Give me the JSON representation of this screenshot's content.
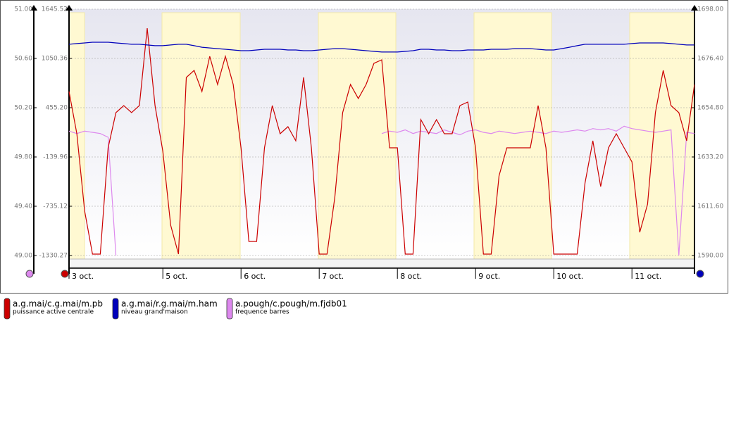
{
  "chart_data": {
    "type": "line",
    "xlim": [
      3.8,
      11.8
    ],
    "xticks": [
      {
        "value": 3.8,
        "label": "3 oct."
      },
      {
        "value": 5,
        "label": "5 oct."
      },
      {
        "value": 6,
        "label": "6 oct."
      },
      {
        "value": 7,
        "label": "7 oct."
      },
      {
        "value": 8,
        "label": "8 oct."
      },
      {
        "value": 9,
        "label": "9 oct."
      },
      {
        "value": 10,
        "label": "10 oct."
      },
      {
        "value": 11,
        "label": "11 oct."
      }
    ],
    "ylim": [
      -1330.27,
      1645.52
    ],
    "yticks": [
      -1330.27,
      -735.12,
      -139.96,
      {
        "value": 455.2,
        "label": "455.20"
      },
      1050.36,
      1645.52
    ],
    "y2lim": [
      1590,
      1698
    ],
    "y2ticks": [
      {
        "value": 1590,
        "label": "1590.00"
      },
      {
        "value": 1611.6,
        "label": "1611.60"
      },
      {
        "value": 1633.2,
        "label": "1633.20"
      },
      {
        "value": 1654.8,
        "label": "1654.80"
      },
      {
        "value": 1676.4,
        "label": "1676.40"
      },
      {
        "value": 1698,
        "label": "1698.00"
      }
    ],
    "y3lim": [
      49,
      51
    ],
    "y3ticks": [
      {
        "value": 49,
        "label": "49.00"
      },
      {
        "value": 49.4,
        "label": "49.40"
      },
      {
        "value": 49.8,
        "label": "49.80"
      },
      {
        "value": 50.2,
        "label": "50.20"
      },
      {
        "value": 50.6,
        "label": "50.60"
      },
      {
        "value": 51,
        "label": "51.00"
      }
    ],
    "grid": true,
    "x": [
      3.8,
      3.9,
      4.0,
      4.1,
      4.2,
      4.3,
      4.4,
      4.5,
      4.6,
      4.7,
      4.8,
      4.9,
      5.0,
      5.1,
      5.2,
      5.3,
      5.4,
      5.5,
      5.6,
      5.7,
      5.8,
      5.9,
      6.0,
      6.1,
      6.2,
      6.3,
      6.4,
      6.5,
      6.6,
      6.7,
      6.8,
      6.9,
      7.0,
      7.1,
      7.2,
      7.3,
      7.4,
      7.5,
      7.6,
      7.7,
      7.8,
      7.9,
      8.0,
      8.1,
      8.2,
      8.3,
      8.4,
      8.5,
      8.6,
      8.7,
      8.8,
      8.9,
      9.0,
      9.1,
      9.2,
      9.3,
      9.4,
      9.5,
      9.6,
      9.7,
      9.8,
      9.9,
      10.0,
      10.1,
      10.2,
      10.3,
      10.4,
      10.5,
      10.6,
      10.7,
      10.8,
      10.9,
      11.0,
      11.1,
      11.2,
      11.3,
      11.4,
      11.5,
      11.6,
      11.7,
      11.8
    ],
    "series": [
      {
        "name": "a.g.mai/c.g.mai/m.pb",
        "description": "puissance active centrale",
        "color": "#cc0000",
        "axis": "y",
        "values": [
          651,
          141,
          -794,
          -1313,
          -1313,
          -29,
          396,
          481,
          396,
          481,
          1416,
          481,
          -72,
          -964,
          -1313,
          821,
          906,
          651,
          1076,
          736,
          1076,
          736,
          -29,
          -1160,
          -1160,
          -29,
          481,
          141,
          226,
          56,
          821,
          -29,
          -1313,
          -1313,
          -624,
          396,
          736,
          566,
          736,
          991,
          1033,
          -29,
          -29,
          -1313,
          -1313,
          311,
          141,
          311,
          141,
          141,
          481,
          523,
          -29,
          -1313,
          -1313,
          -369,
          -29,
          -29,
          -29,
          -29,
          481,
          -29,
          -1313,
          -1313,
          -1313,
          -1313,
          -454,
          56,
          -497,
          -29,
          141,
          -29,
          -199,
          -1050,
          -709,
          396,
          906,
          481,
          396,
          56,
          736
        ]
      },
      {
        "name": "a.g.mai/r.g.mai/m.ham",
        "description": "niveau grand'maison",
        "color": "#0000bb",
        "axis": "y2",
        "values": [
          1682.6,
          1682.9,
          1683.2,
          1683.5,
          1683.5,
          1683.5,
          1683.2,
          1682.9,
          1682.6,
          1682.6,
          1682.3,
          1682.0,
          1682.0,
          1682.3,
          1682.6,
          1682.6,
          1682.0,
          1681.3,
          1681.0,
          1680.7,
          1680.4,
          1680.1,
          1679.8,
          1679.8,
          1680.1,
          1680.4,
          1680.4,
          1680.4,
          1680.1,
          1680.1,
          1679.8,
          1679.8,
          1680.1,
          1680.4,
          1680.7,
          1680.7,
          1680.4,
          1680.1,
          1679.8,
          1679.5,
          1679.2,
          1679.2,
          1679.2,
          1679.5,
          1679.8,
          1680.4,
          1680.4,
          1680.1,
          1680.1,
          1679.8,
          1679.8,
          1680.1,
          1680.1,
          1680.1,
          1680.4,
          1680.4,
          1680.4,
          1680.7,
          1680.7,
          1680.7,
          1680.4,
          1680.1,
          1680.1,
          1680.7,
          1681.3,
          1682.0,
          1682.6,
          1682.6,
          1682.6,
          1682.6,
          1682.6,
          1682.6,
          1682.9,
          1683.2,
          1683.2,
          1683.2,
          1683.2,
          1682.9,
          1682.6,
          1682.3,
          1682.3
        ]
      },
      {
        "name": "a.pough/c.pough/m.fjdb01",
        "description": "frequence barres",
        "color": "#dd88ee",
        "axis": "y3",
        "values": [
          50.01,
          49.99,
          50.01,
          50.0,
          49.99,
          49.96,
          49.0,
          null,
          null,
          null,
          null,
          null,
          null,
          null,
          null,
          null,
          null,
          null,
          null,
          null,
          null,
          null,
          null,
          null,
          null,
          null,
          null,
          null,
          null,
          null,
          null,
          null,
          null,
          null,
          null,
          null,
          null,
          null,
          null,
          null,
          49.99,
          50.01,
          50.0,
          50.02,
          49.99,
          50.01,
          50.0,
          49.99,
          50.02,
          50.0,
          49.98,
          50.01,
          50.02,
          50.0,
          49.99,
          50.01,
          50.0,
          49.99,
          50.0,
          50.01,
          50.0,
          49.99,
          50.01,
          50.0,
          50.01,
          50.02,
          50.01,
          50.03,
          50.02,
          50.03,
          50.01,
          50.05,
          50.03,
          50.02,
          50.01,
          50.0,
          50.01,
          50.02,
          49.0,
          50.0,
          49.99
        ]
      }
    ]
  }
}
